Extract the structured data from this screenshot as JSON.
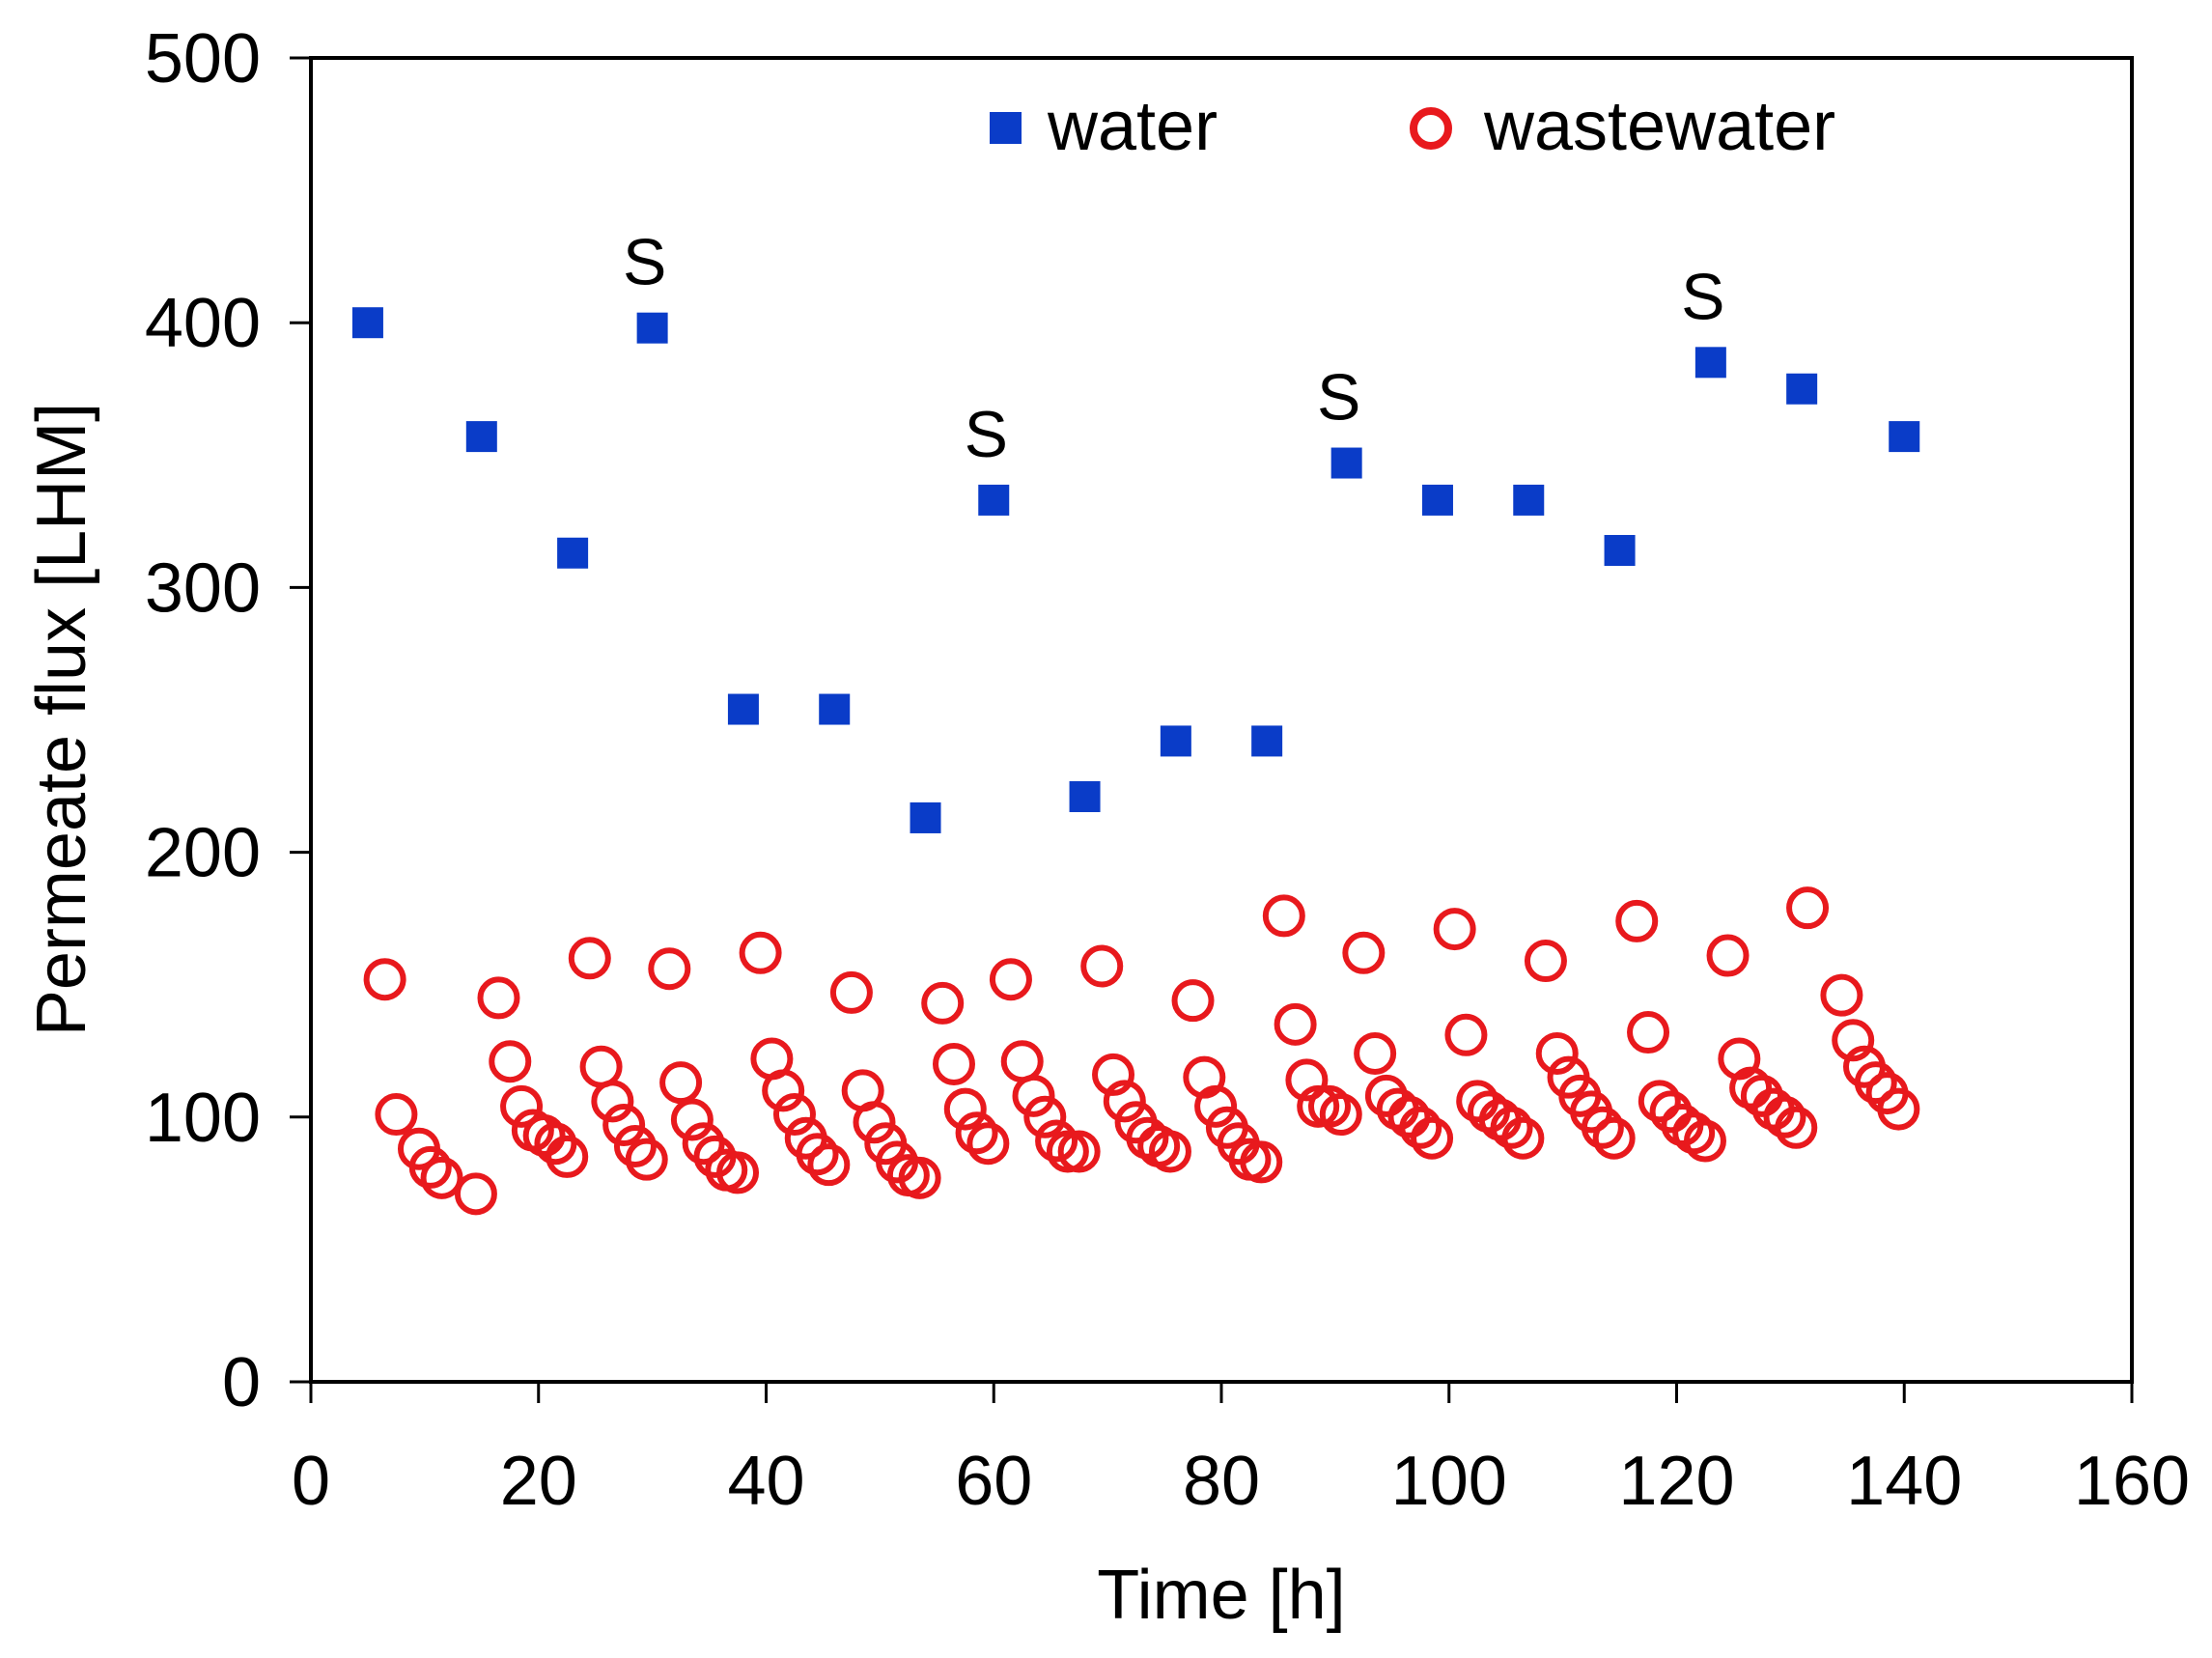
{
  "chart_data": {
    "type": "scatter",
    "xlabel": "Time [h]",
    "ylabel": "Permeate flux [LHM]",
    "xlim": [
      0,
      160
    ],
    "ylim": [
      0,
      500
    ],
    "xticks": [
      0,
      20,
      40,
      60,
      80,
      100,
      120,
      140,
      160
    ],
    "yticks": [
      0,
      100,
      200,
      300,
      400,
      500
    ],
    "grid": false,
    "legend_position": "top-right",
    "series": [
      {
        "name": "water",
        "marker": "filled-square",
        "color": "#0a3cc8",
        "points": [
          [
            5,
            400
          ],
          [
            15,
            357
          ],
          [
            23,
            313
          ],
          [
            30,
            398
          ],
          [
            38,
            254
          ],
          [
            46,
            254
          ],
          [
            54,
            213
          ],
          [
            60,
            333
          ],
          [
            68,
            221
          ],
          [
            76,
            242
          ],
          [
            84,
            242
          ],
          [
            91,
            347
          ],
          [
            99,
            333
          ],
          [
            107,
            333
          ],
          [
            115,
            314
          ],
          [
            123,
            385
          ],
          [
            131,
            375
          ],
          [
            140,
            357
          ]
        ]
      },
      {
        "name": "wastewater",
        "marker": "open-circle",
        "color": "#e8191d",
        "points": [
          [
            6.5,
            152
          ],
          [
            7.5,
            101
          ],
          [
            9.5,
            88
          ],
          [
            10.5,
            81
          ],
          [
            11.5,
            77
          ],
          [
            14.5,
            71
          ],
          [
            16.5,
            145
          ],
          [
            17.5,
            121
          ],
          [
            18.5,
            104
          ],
          [
            19.5,
            95
          ],
          [
            20.5,
            93
          ],
          [
            21.5,
            90
          ],
          [
            22.5,
            85
          ],
          [
            24.5,
            160
          ],
          [
            25.5,
            119
          ],
          [
            26.5,
            106
          ],
          [
            27.5,
            97
          ],
          [
            28.5,
            89
          ],
          [
            29.5,
            84
          ],
          [
            31.5,
            156
          ],
          [
            32.5,
            113
          ],
          [
            33.5,
            99
          ],
          [
            34.5,
            90
          ],
          [
            35.5,
            85
          ],
          [
            36.5,
            80
          ],
          [
            37.5,
            79
          ],
          [
            39.5,
            162
          ],
          [
            40.5,
            122
          ],
          [
            41.5,
            110
          ],
          [
            42.5,
            101
          ],
          [
            43.5,
            92
          ],
          [
            44.5,
            86
          ],
          [
            45.5,
            82
          ],
          [
            47.5,
            147
          ],
          [
            48.5,
            110
          ],
          [
            49.5,
            98
          ],
          [
            50.5,
            90
          ],
          [
            51.5,
            83
          ],
          [
            52.5,
            78
          ],
          [
            53.5,
            77
          ],
          [
            55.5,
            143
          ],
          [
            56.5,
            120
          ],
          [
            57.5,
            103
          ],
          [
            58.5,
            94
          ],
          [
            59.5,
            90
          ],
          [
            61.5,
            152
          ],
          [
            62.5,
            121
          ],
          [
            63.5,
            108
          ],
          [
            64.5,
            100
          ],
          [
            65.5,
            91
          ],
          [
            66.5,
            87
          ],
          [
            67.5,
            87
          ],
          [
            69.5,
            157
          ],
          [
            70.5,
            116
          ],
          [
            71.5,
            106
          ],
          [
            72.5,
            98
          ],
          [
            73.5,
            92
          ],
          [
            74.5,
            89
          ],
          [
            75.5,
            87
          ],
          [
            77.5,
            144
          ],
          [
            78.5,
            115
          ],
          [
            79.5,
            104
          ],
          [
            80.5,
            96
          ],
          [
            81.5,
            90
          ],
          [
            82.5,
            84
          ],
          [
            83.5,
            83
          ],
          [
            85.5,
            176
          ],
          [
            86.5,
            135
          ],
          [
            87.5,
            114
          ],
          [
            88.5,
            104
          ],
          [
            89.5,
            104
          ],
          [
            90.5,
            101
          ],
          [
            92.5,
            162
          ],
          [
            93.5,
            124
          ],
          [
            94.5,
            108
          ],
          [
            95.5,
            103
          ],
          [
            96.5,
            100
          ],
          [
            97.5,
            96
          ],
          [
            98.5,
            92
          ],
          [
            100.5,
            171
          ],
          [
            101.5,
            131
          ],
          [
            102.5,
            106
          ],
          [
            103.5,
            102
          ],
          [
            104.5,
            99
          ],
          [
            105.5,
            96
          ],
          [
            106.5,
            92
          ],
          [
            108.5,
            159
          ],
          [
            109.5,
            124
          ],
          [
            110.5,
            115
          ],
          [
            111.5,
            108
          ],
          [
            112.5,
            102
          ],
          [
            113.5,
            96
          ],
          [
            114.5,
            92
          ],
          [
            116.5,
            174
          ],
          [
            117.5,
            132
          ],
          [
            118.5,
            106
          ],
          [
            119.5,
            102
          ],
          [
            120.5,
            97
          ],
          [
            121.5,
            94
          ],
          [
            122.5,
            91
          ],
          [
            124.5,
            161
          ],
          [
            125.5,
            122
          ],
          [
            126.5,
            111
          ],
          [
            127.5,
            108
          ],
          [
            128.5,
            103
          ],
          [
            129.5,
            100
          ],
          [
            130.5,
            96
          ],
          [
            131.5,
            179
          ],
          [
            134.5,
            146
          ],
          [
            135.5,
            129
          ],
          [
            136.5,
            119
          ],
          [
            137.5,
            113
          ],
          [
            138.5,
            109
          ],
          [
            139.5,
            103
          ]
        ]
      }
    ],
    "annotations": [
      {
        "text": "S",
        "x": 30,
        "y": 398
      },
      {
        "text": "S",
        "x": 60,
        "y": 333
      },
      {
        "text": "S",
        "x": 91,
        "y": 347
      },
      {
        "text": "S",
        "x": 123,
        "y": 385
      }
    ]
  }
}
